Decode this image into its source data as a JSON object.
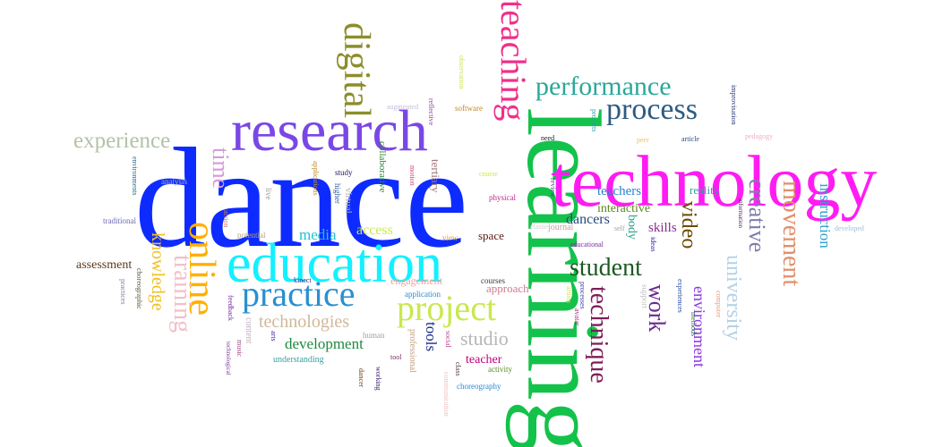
{
  "words": [
    {
      "text": "dance",
      "color": "#0d2bff"
    },
    {
      "text": "learning",
      "color": "#13c24a"
    },
    {
      "text": "technology",
      "color": "#ff1cf2"
    },
    {
      "text": "research",
      "color": "#7a47e6"
    },
    {
      "text": "education",
      "color": "#14f0ff"
    },
    {
      "text": "teaching",
      "color": "#f0308a"
    },
    {
      "text": "digital",
      "color": "#8c8e2a"
    },
    {
      "text": "online",
      "color": "#ffb000"
    },
    {
      "text": "practice",
      "color": "#2b8fd0"
    },
    {
      "text": "project",
      "color": "#c9e84f"
    },
    {
      "text": "process",
      "color": "#2d5b82"
    },
    {
      "text": "performance",
      "color": "#2aa89a"
    },
    {
      "text": "student",
      "color": "#1c5a22"
    },
    {
      "text": "experience",
      "color": "#b3c2a8"
    },
    {
      "text": "technique",
      "color": "#7e1d58"
    },
    {
      "text": "movement",
      "color": "#e0906a"
    },
    {
      "text": "creative",
      "color": "#7f7da9"
    },
    {
      "text": "video",
      "color": "#6a4b00"
    },
    {
      "text": "work",
      "color": "#6b2b8d"
    },
    {
      "text": "university",
      "color": "#b3d2e8"
    },
    {
      "text": "environment",
      "color": "#8a37e0"
    },
    {
      "text": "instruction",
      "color": "#2aa0cf"
    },
    {
      "text": "time",
      "color": "#d49ad8"
    },
    {
      "text": "training",
      "color": "#f3bfc9"
    },
    {
      "text": "knowledge",
      "color": "#f0c020"
    },
    {
      "text": "technologies",
      "color": "#d0b89a"
    },
    {
      "text": "development",
      "color": "#1d8a3f"
    },
    {
      "text": "media",
      "color": "#20c2d3"
    },
    {
      "text": "access",
      "color": "#c9e84f"
    },
    {
      "text": "studio",
      "color": "#b7b7b7"
    },
    {
      "text": "teachers",
      "color": "#2a7fd0"
    },
    {
      "text": "dancers",
      "color": "#244a7a"
    },
    {
      "text": "interactive",
      "color": "#5b8a20"
    },
    {
      "text": "skills",
      "color": "#8a2a8a"
    },
    {
      "text": "body",
      "color": "#2aa08a"
    },
    {
      "text": "reality",
      "color": "#2aa0a0"
    },
    {
      "text": "space",
      "color": "#5a1a1a"
    },
    {
      "text": "tools",
      "color": "#1a2a8a"
    },
    {
      "text": "teacher",
      "color": "#c0007a"
    },
    {
      "text": "approach",
      "color": "#d07a90"
    },
    {
      "text": "assessment",
      "color": "#5a3a1a"
    },
    {
      "text": "tertiary",
      "color": "#a07a7a"
    },
    {
      "text": "collaborative",
      "color": "#2a8a3a"
    },
    {
      "text": "virtual",
      "color": "#b0b0b0"
    },
    {
      "text": "applications",
      "color": "#c08a2a"
    },
    {
      "text": "study",
      "color": "#1a1a5a"
    },
    {
      "text": "higher",
      "color": "#2a5aa0"
    },
    {
      "text": "live",
      "color": "#9a9a9a"
    },
    {
      "text": "action",
      "color": "#d07a70"
    },
    {
      "text": "potential",
      "color": "#b0a080"
    },
    {
      "text": "traditional",
      "color": "#6a6ab0"
    },
    {
      "text": "analysis",
      "color": "#b0b0b0"
    },
    {
      "text": "environments",
      "color": "#2a6a8a"
    },
    {
      "text": "practices",
      "color": "#8a7aa0"
    },
    {
      "text": "choreographic",
      "color": "#5a5a3a"
    },
    {
      "text": "feedback",
      "color": "#7a2aa0"
    },
    {
      "text": "content",
      "color": "#c0b0c0"
    },
    {
      "text": "music",
      "color": "#a04a8a"
    },
    {
      "text": "technological",
      "color": "#7a3a9a"
    },
    {
      "text": "arts",
      "color": "#3a1aa0"
    },
    {
      "text": "understanding",
      "color": "#3aa0a0"
    },
    {
      "text": "human",
      "color": "#a0a0a0"
    },
    {
      "text": "kinect",
      "color": "#2a2a8a"
    },
    {
      "text": "engagement",
      "color": "#f0a0a0"
    },
    {
      "text": "application",
      "color": "#2a8ad0"
    },
    {
      "text": "view",
      "color": "#d0a040"
    },
    {
      "text": "professional",
      "color": "#c0a080"
    },
    {
      "text": "social",
      "color": "#c04a8a"
    },
    {
      "text": "dancer",
      "color": "#6a4a1a"
    },
    {
      "text": "working",
      "color": "#3a1a6a"
    },
    {
      "text": "tool",
      "color": "#7a2a6a"
    },
    {
      "text": "class",
      "color": "#5a3a3a"
    },
    {
      "text": "activity",
      "color": "#5a8a2a"
    },
    {
      "text": "choreography",
      "color": "#2a8ad0"
    },
    {
      "text": "communication",
      "color": "#f0c0c0"
    },
    {
      "text": "courses",
      "color": "#3a3a3a"
    },
    {
      "text": "physical",
      "color": "#c02a8a"
    },
    {
      "text": "motion",
      "color": "#d04a6a"
    },
    {
      "text": "course",
      "color": "#c9e84f"
    },
    {
      "text": "software",
      "color": "#c08a2a"
    },
    {
      "text": "reflective",
      "color": "#8a4aa0"
    },
    {
      "text": "augmented",
      "color": "#c0c0e0"
    },
    {
      "text": "observation",
      "color": "#c9e84f"
    },
    {
      "text": "need",
      "color": "#1a1a1a"
    },
    {
      "text": "projects",
      "color": "#2aa0a0"
    },
    {
      "text": "review",
      "color": "#4a4a8a"
    },
    {
      "text": "journal",
      "color": "#c0a0a0"
    },
    {
      "text": "self",
      "color": "#a0a0a0"
    },
    {
      "text": "classes",
      "color": "#d0d0d0"
    },
    {
      "text": "educational",
      "color": "#7a2aa0"
    },
    {
      "text": "ideas",
      "color": "#3a1aa0"
    },
    {
      "text": "processes",
      "color": "#3a3ab0"
    },
    {
      "text": "artists",
      "color": "#c9e84f"
    },
    {
      "text": "avatar",
      "color": "#a02a7a"
    },
    {
      "text": "support",
      "color": "#c0c0c0"
    },
    {
      "text": "experiences",
      "color": "#2a4aa0"
    },
    {
      "text": "methods",
      "color": "#2a6a5a"
    },
    {
      "text": "computer",
      "color": "#e0a080"
    },
    {
      "text": "peer",
      "color": "#f0c060"
    },
    {
      "text": "article",
      "color": "#2a4a8a"
    },
    {
      "text": "pedagogy",
      "color": "#f0b0c0"
    },
    {
      "text": "improvisation",
      "color": "#2a3a7a"
    },
    {
      "text": "information",
      "color": "#4a2a5a"
    },
    {
      "text": "developed",
      "color": "#a0c0d8"
    }
  ]
}
